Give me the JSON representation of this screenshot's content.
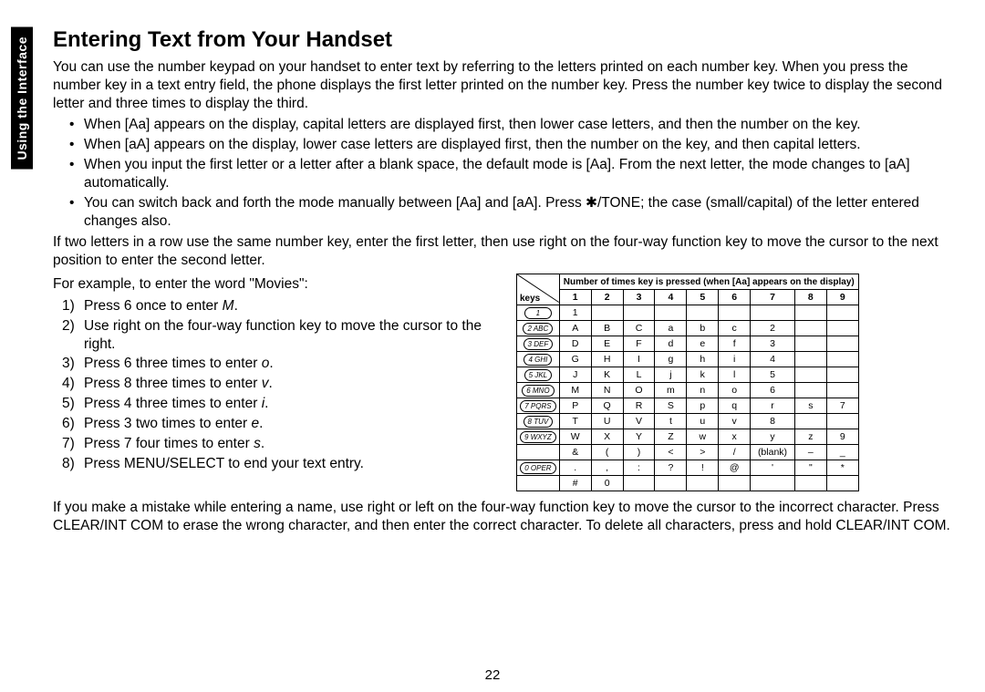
{
  "sideTab": "Using the Interface",
  "title": "Entering Text from Your Handset",
  "intro": "You can use the number keypad on your handset to enter text by referring to the letters printed on each number key. When you press the number key in a text entry field, the phone displays the first letter printed on the number key. Press the number key twice to display the second letter and three times to display the third.",
  "bullets": [
    "When [Aa] appears on the display, capital letters are displayed first, then lower case letters, and then the number on the key.",
    "When [aA] appears on the display, lower case letters are displayed first, then the number on the key, and then capital letters.",
    "When you input the first letter or a letter after a blank space, the default mode is [Aa]. From the next letter, the mode changes to [aA] automatically.",
    "You can switch back and forth the mode manually between [Aa] and [aA]. Press ✱/TONE; the case (small/capital) of the letter entered changes also."
  ],
  "para2": "If two letters in a row use the same number key, enter the first letter, then use right  on the four-way function key to move the cursor to the next position to enter the second letter.",
  "exampleIntro": "For example, to enter the word \"Movies\":",
  "steps": [
    {
      "pre": "Press 6 once to enter ",
      "ital": "M",
      "post": "."
    },
    {
      "pre": "Use right  on the four-way function key to move the cursor to the right.",
      "ital": "",
      "post": ""
    },
    {
      "pre": "Press 6 three times to enter ",
      "ital": "o",
      "post": "."
    },
    {
      "pre": "Press 8 three times to enter ",
      "ital": "v",
      "post": "."
    },
    {
      "pre": "Press 4 three times to enter ",
      "ital": "i",
      "post": "."
    },
    {
      "pre": "Press 3 two times to enter ",
      "ital": "e",
      "post": "."
    },
    {
      "pre": "Press 7 four times to enter ",
      "ital": "s",
      "post": "."
    },
    {
      "pre": "Press MENU/SELECT to end your text entry.",
      "ital": "",
      "post": ""
    }
  ],
  "tableCaption": "Number of times key is pressed (when [Aa] appears on the display)",
  "colHeaders": [
    "keys",
    "1",
    "2",
    "3",
    "4",
    "5",
    "6",
    "7",
    "8",
    "9"
  ],
  "rows": [
    {
      "key": "1",
      "cells": [
        "1",
        "",
        "",
        "",
        "",
        "",
        "",
        "",
        ""
      ]
    },
    {
      "key": "2 ABC",
      "cells": [
        "A",
        "B",
        "C",
        "a",
        "b",
        "c",
        "2",
        "",
        ""
      ]
    },
    {
      "key": "3 DEF",
      "cells": [
        "D",
        "E",
        "F",
        "d",
        "e",
        "f",
        "3",
        "",
        ""
      ]
    },
    {
      "key": "4 GHI",
      "cells": [
        "G",
        "H",
        "I",
        "g",
        "h",
        "i",
        "4",
        "",
        ""
      ]
    },
    {
      "key": "5 JKL",
      "cells": [
        "J",
        "K",
        "L",
        "j",
        "k",
        "l",
        "5",
        "",
        ""
      ]
    },
    {
      "key": "6 MNO",
      "cells": [
        "M",
        "N",
        "O",
        "m",
        "n",
        "o",
        "6",
        "",
        ""
      ]
    },
    {
      "key": "7 PQRS",
      "cells": [
        "P",
        "Q",
        "R",
        "S",
        "p",
        "q",
        "r",
        "s",
        "7"
      ]
    },
    {
      "key": "8 TUV",
      "cells": [
        "T",
        "U",
        "V",
        "t",
        "u",
        "v",
        "8",
        "",
        ""
      ]
    },
    {
      "key": "9 WXYZ",
      "cells": [
        "W",
        "X",
        "Y",
        "Z",
        "w",
        "x",
        "y",
        "z",
        "9"
      ]
    },
    {
      "key": "",
      "cells": [
        "&",
        "(",
        ")",
        "<",
        ">",
        "/",
        "(blank)",
        "–",
        "_"
      ]
    },
    {
      "key": "0 OPER",
      "cells": [
        ".",
        ",",
        ":",
        "?",
        "!",
        "@",
        "'",
        "\"",
        "*"
      ]
    },
    {
      "key": "",
      "cells": [
        "#",
        "0",
        "",
        "",
        "",
        "",
        "",
        "",
        ""
      ]
    }
  ],
  "para3": "If you make a mistake while entering a name, use right  or left  on the four-way function key to move the cursor to the incorrect character. Press CLEAR/INT COM to erase the wrong character, and then enter the correct character. To delete all characters, press and hold CLEAR/INT COM.",
  "pageNum": "22"
}
